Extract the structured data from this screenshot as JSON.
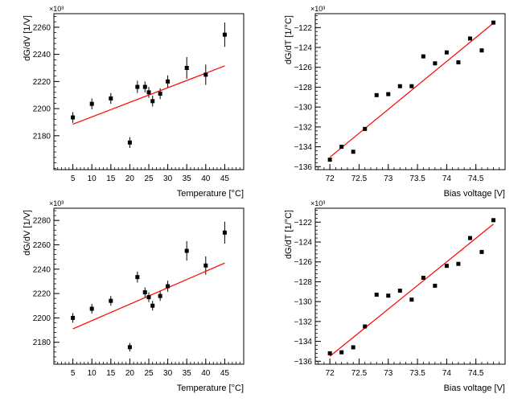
{
  "chart_data": [
    {
      "type": "scatter",
      "panel": "top-left",
      "title": "",
      "xlabel": "Temperature [°C]",
      "ylabel": "dG/dV [1/V]",
      "exponent_label": "×10³",
      "xlim": [
        0,
        50
      ],
      "ylim": [
        2155,
        2270
      ],
      "x_ticks": [
        5,
        10,
        15,
        20,
        25,
        30,
        35,
        40,
        45
      ],
      "x_tick_labels": [
        "5",
        "10",
        "15",
        "20",
        "25",
        "30",
        "35",
        "40",
        "45"
      ],
      "y_ticks": [
        2180,
        2200,
        2220,
        2240,
        2260
      ],
      "y_tick_labels": [
        "2180",
        "2200",
        "2220",
        "2240",
        "2260"
      ],
      "x": [
        5,
        10,
        15,
        20,
        22,
        24,
        25,
        26,
        28,
        30,
        35,
        40,
        45
      ],
      "y": [
        2193.5,
        2203.5,
        2207.5,
        2175,
        2216,
        2216,
        2212,
        2205.5,
        2211,
        2220,
        2230,
        2225,
        2254.5
      ],
      "yerr": [
        4,
        4,
        4,
        4,
        4.5,
        4,
        4,
        4,
        4,
        4.5,
        8,
        7.5,
        9
      ],
      "fit": {
        "x": [
          5,
          45
        ],
        "y": [
          2188.5,
          2231.5
        ],
        "color": "#ff0000"
      }
    },
    {
      "type": "scatter",
      "panel": "top-right",
      "title": "",
      "xlabel": "Bias voltage [V]",
      "ylabel": "dG/dT [1/°C]",
      "exponent_label": "×10³",
      "xlim": [
        71.75,
        75.0
      ],
      "ylim": [
        -136.3,
        -120.6
      ],
      "x_ticks": [
        72,
        72.5,
        73,
        73.5,
        74,
        74.5
      ],
      "x_tick_labels": [
        "72",
        "72.5",
        "73",
        "73.5",
        "74",
        "74.5"
      ],
      "y_ticks": [
        -136,
        -134,
        -132,
        -130,
        -128,
        -126,
        -124,
        -122
      ],
      "y_tick_labels": [
        "−136",
        "−134",
        "−132",
        "−130",
        "−128",
        "−126",
        "−124",
        "−122"
      ],
      "x": [
        72.0,
        72.2,
        72.4,
        72.6,
        72.8,
        73.0,
        73.2,
        73.4,
        73.6,
        73.8,
        74.0,
        74.2,
        74.4,
        74.6,
        74.8
      ],
      "y": [
        -135.3,
        -134.0,
        -134.5,
        -132.2,
        -128.8,
        -128.7,
        -127.9,
        -127.9,
        -124.9,
        -125.6,
        -124.5,
        -125.5,
        -123.1,
        -124.3,
        -121.5
      ],
      "fit": {
        "x": [
          72.0,
          74.8
        ],
        "y": [
          -135.05,
          -121.55
        ],
        "color": "#ff0000"
      }
    },
    {
      "type": "scatter",
      "panel": "bottom-left",
      "title": "",
      "xlabel": "Temperature [°C]",
      "ylabel": "dG/dV [1/V]",
      "exponent_label": "×10³",
      "xlim": [
        0,
        50
      ],
      "ylim": [
        2162,
        2290
      ],
      "x_ticks": [
        5,
        10,
        15,
        20,
        25,
        30,
        35,
        40,
        45
      ],
      "x_tick_labels": [
        "5",
        "10",
        "15",
        "20",
        "25",
        "30",
        "35",
        "40",
        "45"
      ],
      "y_ticks": [
        2180,
        2200,
        2220,
        2240,
        2260,
        2280
      ],
      "y_tick_labels": [
        "2180",
        "2200",
        "2220",
        "2240",
        "2260",
        "2280"
      ],
      "x": [
        5,
        10,
        15,
        20,
        22,
        24,
        25,
        26,
        28,
        30,
        35,
        40,
        45
      ],
      "y": [
        2200,
        2207.5,
        2214,
        2176,
        2233.5,
        2221,
        2217,
        2210,
        2218,
        2226,
        2255,
        2243,
        2270
      ],
      "yerr": [
        4,
        4,
        4,
        3.5,
        4.5,
        4,
        4,
        4,
        4,
        4.5,
        8,
        7.5,
        9
      ],
      "fit": {
        "x": [
          5,
          45
        ],
        "y": [
          2191,
          2245
        ],
        "color": "#ff0000"
      }
    },
    {
      "type": "scatter",
      "panel": "bottom-right",
      "title": "",
      "xlabel": "Bias voltage [V]",
      "ylabel": "dG/dT [1/°C]",
      "exponent_label": "×10³",
      "xlim": [
        71.75,
        75.0
      ],
      "ylim": [
        -136.3,
        -120.6
      ],
      "x_ticks": [
        72,
        72.5,
        73,
        73.5,
        74,
        74.5
      ],
      "x_tick_labels": [
        "72",
        "72.5",
        "73",
        "73.5",
        "74",
        "74.5"
      ],
      "y_ticks": [
        -136,
        -134,
        -132,
        -130,
        -128,
        -126,
        -124,
        -122
      ],
      "y_tick_labels": [
        "−136",
        "−134",
        "−132",
        "−130",
        "−128",
        "−126",
        "−124",
        "−122"
      ],
      "x": [
        72.0,
        72.2,
        72.4,
        72.6,
        72.8,
        73.0,
        73.2,
        73.4,
        73.6,
        73.8,
        74.0,
        74.2,
        74.4,
        74.6,
        74.8
      ],
      "y": [
        -135.2,
        -135.1,
        -134.6,
        -132.5,
        -129.3,
        -129.4,
        -128.9,
        -129.8,
        -127.6,
        -128.4,
        -126.4,
        -126.2,
        -123.6,
        -125.0,
        -121.8
      ],
      "fit": {
        "x": [
          72.0,
          74.8
        ],
        "y": [
          -135.5,
          -122.2
        ],
        "color": "#ff0000"
      }
    }
  ]
}
